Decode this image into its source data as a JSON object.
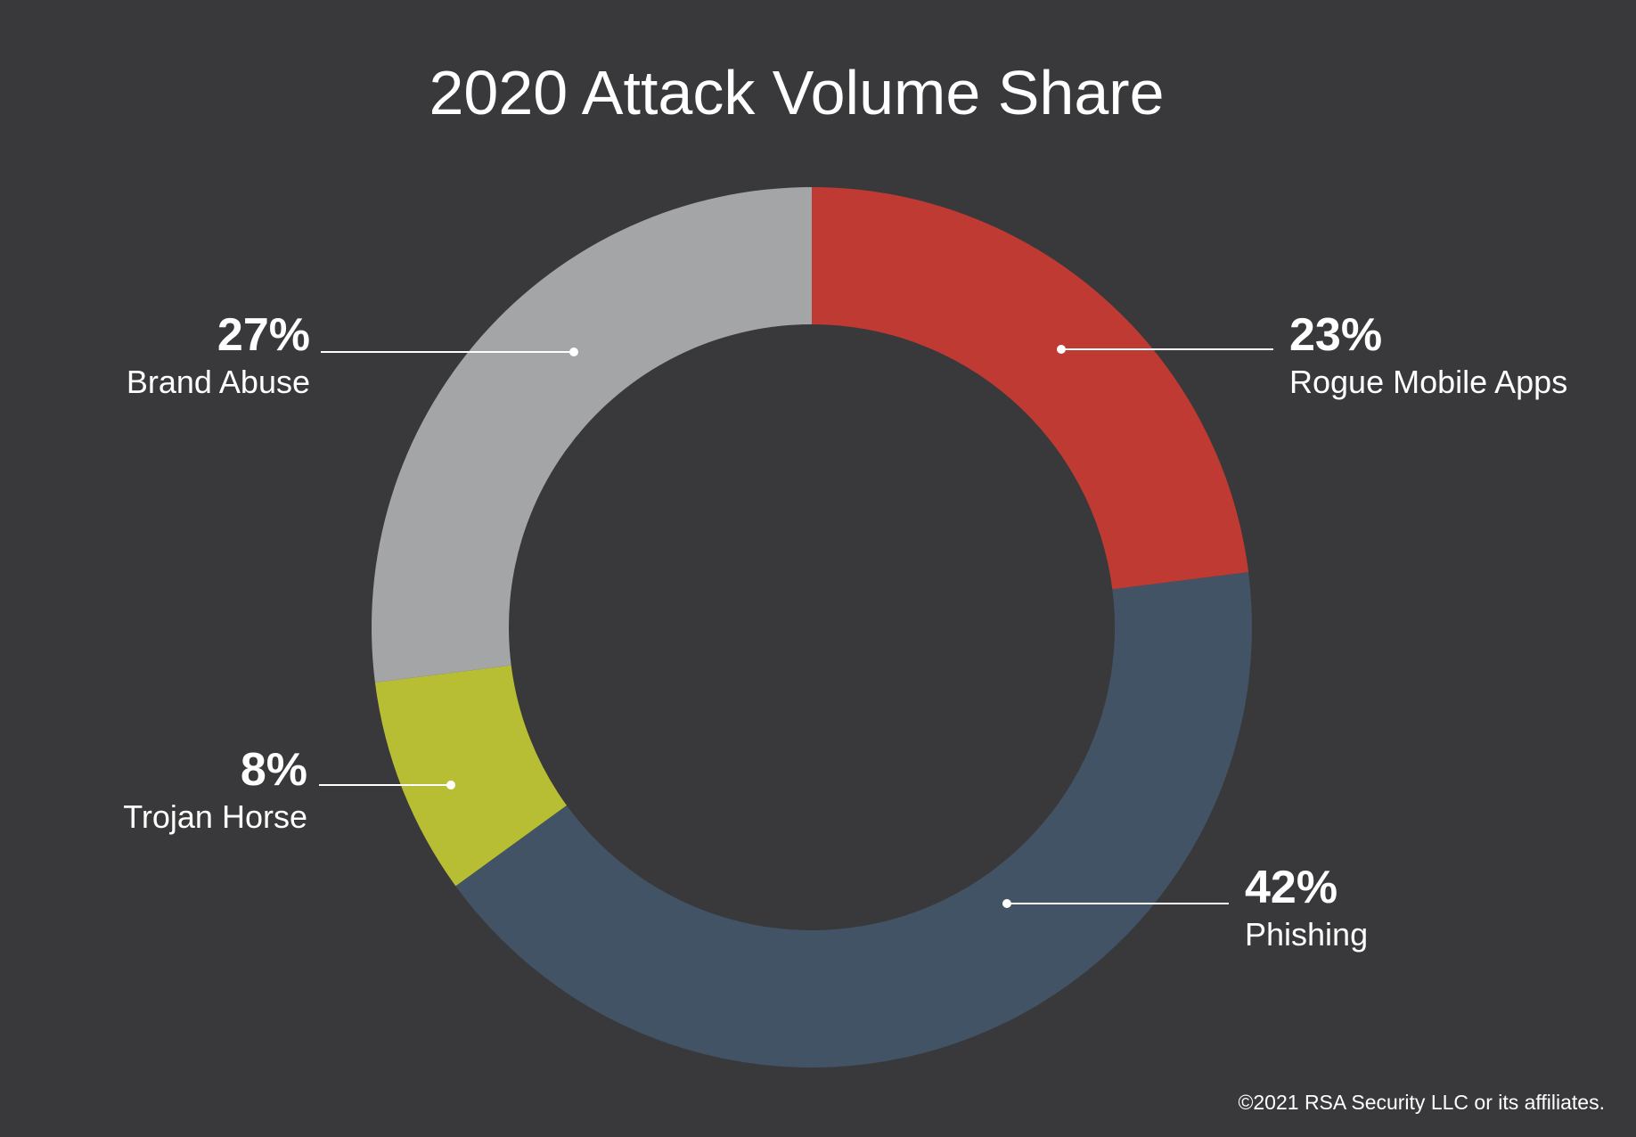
{
  "chart_data": {
    "type": "donut",
    "title": "2020 Attack Volume Share",
    "categories": [
      "Rogue Mobile Apps",
      "Phishing",
      "Trojan Horse",
      "Brand Abuse"
    ],
    "values": [
      23,
      42,
      8,
      27
    ],
    "value_labels": [
      "23%",
      "42%",
      "8%",
      "27%"
    ],
    "colors": [
      "#bf3a33",
      "#415364",
      "#b8be33",
      "#a4a5a7"
    ],
    "footnote": "©2021 RSA Security LLC or its affiliates."
  }
}
